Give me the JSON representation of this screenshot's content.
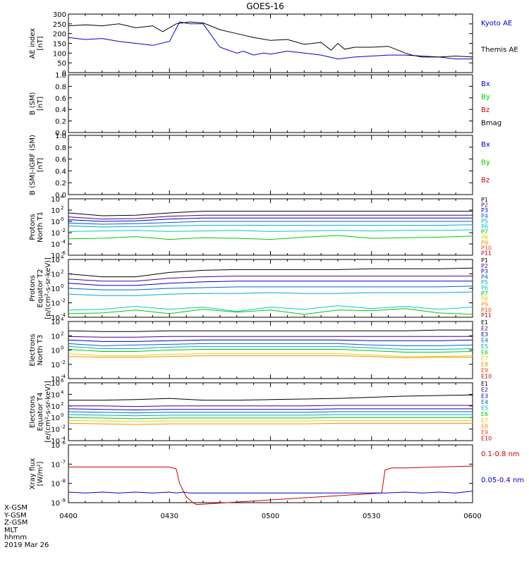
{
  "title": "GOES-16",
  "colors": {
    "black": "#000000",
    "blue": "#0000cc",
    "green": "#00cc00",
    "red": "#cc0000",
    "purple": "#6a0dad",
    "cyan": "#00cccc",
    "yellow": "#e6d300",
    "orange": "#ff8800"
  },
  "x_ticks": [
    "0400",
    "0430",
    "0500",
    "0530",
    "0600"
  ],
  "footer": [
    "X-GSM",
    "Y-GSM",
    "Z-GSM",
    "MLT",
    "hhmm",
    "2019 Mar 26"
  ],
  "chart_data": [
    {
      "type": "line",
      "panel": "ae",
      "ylabel": [
        "AE index",
        "[nT]"
      ],
      "ylim": [
        0,
        300
      ],
      "y_ticks": [
        "0",
        "50",
        "100",
        "150",
        "200",
        "250",
        "300"
      ],
      "x_range_min": [
        0,
        120
      ],
      "series": [
        {
          "name": "Kyoto AE",
          "color": "#0000cc",
          "x": [
            0,
            5,
            10,
            15,
            20,
            25,
            30,
            33,
            36,
            40,
            45,
            50,
            52,
            55,
            58,
            60,
            65,
            70,
            75,
            80,
            85,
            90,
            95,
            100,
            105,
            110,
            115,
            120
          ],
          "y": [
            180,
            170,
            175,
            160,
            150,
            140,
            160,
            260,
            250,
            250,
            130,
            100,
            110,
            90,
            100,
            95,
            110,
            100,
            90,
            70,
            80,
            85,
            90,
            90,
            85,
            80,
            70,
            70
          ]
        },
        {
          "name": "Themis AE",
          "color": "#000000",
          "x": [
            0,
            5,
            10,
            15,
            20,
            25,
            28,
            32,
            36,
            40,
            45,
            50,
            55,
            60,
            65,
            70,
            75,
            78,
            80,
            82,
            85,
            90,
            95,
            100,
            102,
            105,
            110,
            115,
            120
          ],
          "y": [
            240,
            245,
            240,
            250,
            230,
            240,
            210,
            250,
            260,
            255,
            220,
            200,
            180,
            165,
            170,
            145,
            155,
            115,
            150,
            120,
            130,
            130,
            135,
            100,
            90,
            80,
            80,
            85,
            80
          ]
        }
      ]
    },
    {
      "type": "line",
      "panel": "b_sm",
      "ylabel": [
        "B (SM)",
        "[nT]"
      ],
      "ylim": [
        0,
        1
      ],
      "y_ticks": [
        "0.0",
        "0.2",
        "0.4",
        "0.6",
        "0.8",
        "1.0"
      ],
      "series": [
        {
          "name": "Bx",
          "color": "#0000cc",
          "values": []
        },
        {
          "name": "By",
          "color": "#00cc00",
          "values": []
        },
        {
          "name": "Bz",
          "color": "#cc0000",
          "values": []
        },
        {
          "name": "Bmag",
          "color": "#000000",
          "values": []
        }
      ]
    },
    {
      "type": "line",
      "panel": "b_igrf",
      "ylabel": [
        "B (SM)-IGRF (SM)",
        "[nT]"
      ],
      "ylim": [
        0,
        1
      ],
      "y_ticks": [
        "0.0",
        "0.2",
        "0.4",
        "0.6",
        "0.8",
        "1.0"
      ],
      "series": [
        {
          "name": "Bx",
          "color": "#0000cc",
          "values": []
        },
        {
          "name": "By",
          "color": "#00cc00",
          "values": []
        },
        {
          "name": "Bz",
          "color": "#cc0000",
          "values": []
        }
      ]
    },
    {
      "type": "line",
      "panel": "protons_t1",
      "yscale": "log",
      "ylabel": [
        "Protons",
        "North T1"
      ],
      "ylim_exp": [
        -6,
        4
      ],
      "y_tick_exps": [
        -6,
        -4,
        -2,
        0,
        2,
        4
      ],
      "x": [
        0,
        10,
        20,
        30,
        40,
        50,
        60,
        70,
        80,
        90,
        100,
        110,
        120
      ],
      "series": [
        {
          "name": "P1",
          "color": "#000000",
          "log10": [
            1.5,
            1.0,
            1.1,
            1.5,
            1.8,
            1.8,
            1.8,
            1.8,
            1.8,
            1.8,
            1.8,
            1.8,
            1.8
          ]
        },
        {
          "name": "P2",
          "color": "#4b0082",
          "log10": [
            0.8,
            0.4,
            0.5,
            0.9,
            1.1,
            1.1,
            1.1,
            1.1,
            1.1,
            1.1,
            1.1,
            1.1,
            1.1
          ]
        },
        {
          "name": "P3",
          "color": "#0000cc",
          "log10": [
            0.3,
            0.0,
            0.1,
            0.4,
            0.6,
            0.6,
            0.6,
            0.6,
            0.6,
            0.6,
            0.6,
            0.6,
            0.6
          ]
        },
        {
          "name": "P4",
          "color": "#0066cc",
          "log10": [
            -0.3,
            -0.5,
            -0.4,
            -0.2,
            0.0,
            0.0,
            0.0,
            0.0,
            0.0,
            0.0,
            0.0,
            0.0,
            0.0
          ]
        },
        {
          "name": "P5",
          "color": "#00aacc",
          "log10": [
            -0.8,
            -1.0,
            -0.9,
            -0.8,
            -0.7,
            -0.7,
            -0.7,
            -0.7,
            -0.7,
            -0.7,
            -0.7,
            -0.7,
            -0.6
          ]
        },
        {
          "name": "P6",
          "color": "#00cccc",
          "log10": [
            -1.8,
            -1.7,
            -1.6,
            -1.8,
            -1.7,
            -1.6,
            -1.8,
            -1.7,
            -1.6,
            -1.7,
            -1.6,
            -1.6,
            -1.5
          ]
        },
        {
          "name": "P7",
          "color": "#00cc00",
          "log10": [
            -3.1,
            -3.0,
            -2.7,
            -3.2,
            -2.9,
            -3.0,
            -3.2,
            -2.8,
            -2.5,
            -3.0,
            -2.9,
            -2.8,
            -2.6
          ]
        }
      ]
    },
    {
      "type": "line",
      "panel": "protons_t2",
      "yscale": "log",
      "ylabel": [
        "Protons",
        "Equator T2",
        "[p/(cm²-s-sr-keV)]"
      ],
      "ylim_exp": [
        -4,
        4
      ],
      "y_tick_exps": [
        -4,
        -2,
        0,
        2,
        4
      ],
      "x": [
        0,
        10,
        20,
        30,
        40,
        50,
        60,
        70,
        80,
        90,
        100,
        110,
        120
      ],
      "series": [
        {
          "name": "P1",
          "color": "#000000",
          "log10": [
            2.0,
            1.6,
            1.6,
            2.2,
            2.5,
            2.6,
            2.6,
            2.6,
            2.6,
            2.7,
            2.7,
            2.7,
            2.8
          ]
        },
        {
          "name": "P2",
          "color": "#4b0082",
          "log10": [
            1.3,
            1.0,
            1.0,
            1.4,
            1.6,
            1.7,
            1.7,
            1.7,
            1.7,
            1.7,
            1.7,
            1.7,
            1.7
          ]
        },
        {
          "name": "P3",
          "color": "#0000cc",
          "log10": [
            0.7,
            0.4,
            0.4,
            0.7,
            0.9,
            1.0,
            1.0,
            1.0,
            1.0,
            1.0,
            1.0,
            1.0,
            1.0
          ]
        },
        {
          "name": "P4",
          "color": "#0066cc",
          "log10": [
            0.0,
            -0.2,
            -0.2,
            0.0,
            0.1,
            0.2,
            0.2,
            0.2,
            0.2,
            0.2,
            0.2,
            0.2,
            0.3
          ]
        },
        {
          "name": "P5",
          "color": "#00aacc",
          "log10": [
            -0.8,
            -1.0,
            -1.0,
            -0.8,
            -0.7,
            -0.7,
            -0.6,
            -0.7,
            -0.7,
            -0.6,
            -0.6,
            -0.6,
            -0.5
          ]
        },
        {
          "name": "P6",
          "color": "#00cccc",
          "log10": [
            -3.0,
            -2.9,
            -2.5,
            -2.9,
            -2.6,
            -3.2,
            -2.6,
            -2.9,
            -2.4,
            -2.8,
            -2.5,
            -2.9,
            -2.6
          ]
        },
        {
          "name": "P7",
          "color": "#00cc00",
          "log10": [
            -3.5,
            -3.4,
            -3.0,
            -3.5,
            -2.9,
            -3.3,
            -3.0,
            -3.6,
            -3.0,
            -3.1,
            -2.8,
            -3.4,
            -3.6
          ]
        }
      ]
    },
    {
      "type": "line",
      "panel": "electrons_t3",
      "yscale": "log",
      "ylabel": [
        "Electrons",
        "North T3"
      ],
      "ylim_exp": [
        -4,
        4
      ],
      "y_tick_exps": [
        -4,
        -2,
        0,
        2,
        4
      ],
      "x": [
        0,
        10,
        20,
        30,
        40,
        50,
        60,
        70,
        80,
        90,
        100,
        110,
        120
      ],
      "series": [
        {
          "name": "E1",
          "color": "#000000",
          "log10": [
            2.7,
            2.6,
            2.6,
            2.7,
            2.7,
            2.7,
            2.7,
            2.7,
            2.7,
            2.7,
            2.7,
            2.8,
            2.8
          ]
        },
        {
          "name": "E2",
          "color": "#4b0082",
          "log10": [
            1.9,
            1.8,
            1.8,
            1.9,
            1.9,
            1.9,
            1.9,
            1.9,
            1.9,
            1.9,
            1.9,
            1.9,
            1.9
          ]
        },
        {
          "name": "E3",
          "color": "#0000cc",
          "log10": [
            1.4,
            1.2,
            1.2,
            1.3,
            1.4,
            1.4,
            1.4,
            1.4,
            1.4,
            1.3,
            1.3,
            1.3,
            1.4
          ]
        },
        {
          "name": "E4",
          "color": "#0066cc",
          "log10": [
            0.9,
            0.6,
            0.7,
            0.8,
            0.9,
            0.9,
            0.9,
            0.9,
            0.9,
            0.7,
            0.6,
            0.6,
            0.7
          ]
        },
        {
          "name": "E5",
          "color": "#00aacc",
          "log10": [
            0.5,
            0.2,
            0.2,
            0.4,
            0.5,
            0.5,
            0.5,
            0.5,
            0.5,
            0.3,
            0.1,
            0.1,
            0.2
          ]
        },
        {
          "name": "E6",
          "color": "#00cc00",
          "log10": [
            0.1,
            -0.2,
            -0.2,
            0.0,
            0.1,
            0.1,
            0.1,
            0.1,
            0.1,
            -0.1,
            -0.3,
            -0.3,
            -0.2
          ]
        },
        {
          "name": "E7",
          "color": "#e6d300",
          "log10": [
            -0.5,
            -0.8,
            -0.8,
            -0.6,
            -0.5,
            -0.5,
            -0.5,
            -0.5,
            -0.5,
            -0.7,
            -0.9,
            -0.9,
            -0.8
          ]
        },
        {
          "name": "E8",
          "color": "#ff8800",
          "log10": [
            -0.9,
            -1.0,
            -1.0,
            -0.9,
            -0.8,
            -0.8,
            -0.8,
            -0.8,
            -0.8,
            -0.9,
            -1.1,
            -1.0,
            -1.0
          ]
        }
      ]
    },
    {
      "type": "line",
      "panel": "electrons_t4",
      "yscale": "log",
      "ylabel": [
        "Electrons",
        "Equator T4",
        "[e/(cm²-s-sr-keV)]"
      ],
      "ylim_exp": [
        -4,
        6
      ],
      "y_tick_exps": [
        -4,
        -2,
        0,
        2,
        4,
        6
      ],
      "x": [
        0,
        10,
        20,
        30,
        40,
        50,
        60,
        70,
        80,
        90,
        100,
        110,
        120
      ],
      "series": [
        {
          "name": "E1",
          "color": "#000000",
          "log10": [
            3.0,
            3.0,
            3.1,
            3.3,
            3.0,
            3.0,
            3.1,
            3.2,
            3.3,
            3.5,
            3.7,
            3.8,
            3.9
          ]
        },
        {
          "name": "E2",
          "color": "#4b0082",
          "log10": [
            2.0,
            2.0,
            1.9,
            2.0,
            2.0,
            2.0,
            2.0,
            2.0,
            2.1,
            2.1,
            2.1,
            2.1,
            2.1
          ]
        },
        {
          "name": "E3",
          "color": "#0000cc",
          "log10": [
            1.5,
            1.4,
            1.3,
            1.4,
            1.4,
            1.4,
            1.4,
            1.4,
            1.5,
            1.5,
            1.5,
            1.5,
            1.5
          ]
        },
        {
          "name": "E4",
          "color": "#0066cc",
          "log10": [
            1.0,
            0.9,
            0.8,
            0.9,
            0.9,
            0.9,
            0.9,
            0.9,
            1.0,
            1.0,
            1.0,
            1.0,
            1.0
          ]
        },
        {
          "name": "E5",
          "color": "#00aacc",
          "log10": [
            0.5,
            0.4,
            0.3,
            0.4,
            0.4,
            0.4,
            0.4,
            0.4,
            0.5,
            0.5,
            0.5,
            0.5,
            0.5
          ]
        },
        {
          "name": "E6",
          "color": "#00cc00",
          "log10": [
            0.0,
            -0.1,
            -0.2,
            -0.1,
            -0.1,
            -0.1,
            -0.1,
            -0.1,
            0.0,
            0.0,
            0.0,
            0.0,
            0.0
          ]
        },
        {
          "name": "E7",
          "color": "#e6d300",
          "log10": [
            -0.5,
            -0.6,
            -0.7,
            -0.6,
            -0.6,
            -0.6,
            -0.6,
            -0.6,
            -0.5,
            -0.5,
            -0.5,
            -0.5,
            -0.5
          ]
        },
        {
          "name": "E8",
          "color": "#ff8800",
          "log10": [
            -1.0,
            -1.1,
            -1.2,
            -1.1,
            -1.1,
            -1.1,
            -1.1,
            -1.1,
            -1.0,
            -1.0,
            -1.0,
            -1.0,
            -1.0
          ]
        }
      ]
    },
    {
      "type": "line",
      "panel": "xray",
      "yscale": "log",
      "ylabel": [
        "Xray flux",
        "[W/m²]"
      ],
      "ylim_exp": [
        -9,
        -6
      ],
      "y_tick_exps": [
        -9,
        -8,
        -7,
        -6
      ],
      "series": [
        {
          "name": "0.1-0.8 nm",
          "color": "#cc0000",
          "x": [
            0,
            10,
            20,
            30,
            32,
            33,
            35,
            37,
            38,
            93,
            94,
            96,
            100,
            110,
            120
          ],
          "log10": [
            -7.15,
            -7.15,
            -7.15,
            -7.15,
            -7.25,
            -8.0,
            -8.7,
            -9.0,
            -9.1,
            -8.5,
            -7.3,
            -7.2,
            -7.2,
            -7.15,
            -7.1
          ]
        },
        {
          "name": "0.05-0.4 nm",
          "color": "#0000cc",
          "x": [
            0,
            5,
            10,
            15,
            20,
            25,
            30,
            32,
            34,
            36,
            94,
            100,
            105,
            110,
            115,
            120
          ],
          "log10": [
            -8.45,
            -8.5,
            -8.45,
            -8.5,
            -8.45,
            -8.5,
            -8.45,
            -8.5,
            -8.45,
            -8.5,
            -8.5,
            -8.45,
            -8.5,
            -8.45,
            -8.5,
            -8.4
          ]
        }
      ]
    }
  ],
  "panel_labels": {
    "ae": [
      "Kyoto AE",
      "Themis AE"
    ],
    "b_sm": [
      "Bx",
      "By",
      "Bz",
      "Bmag"
    ],
    "b_igrf": [
      "Bx",
      "By",
      "Bz"
    ],
    "protons_t1": [
      "P1",
      "P2",
      "P3",
      "P4",
      "P5",
      "P6",
      "P7",
      "P8",
      "P9",
      "P10",
      "P11"
    ],
    "protons_t2": [
      "P1",
      "P2",
      "P3",
      "P4",
      "P5",
      "P6",
      "P7",
      "P8",
      "P9",
      "P10",
      "P11"
    ],
    "electrons_t3": [
      "E1",
      "E2",
      "E3",
      "E4",
      "E5",
      "E6",
      "E7",
      "E8",
      "E9",
      "E10"
    ],
    "electrons_t4": [
      "E1",
      "E2",
      "E3",
      "E4",
      "E5",
      "E6",
      "E7",
      "E8",
      "E9",
      "E10"
    ],
    "xray": [
      "0.1-0.8 nm",
      "0.05-0.4 nm"
    ]
  },
  "label_colors": {
    "ae": [
      "#0000cc",
      "#000000"
    ],
    "b_sm": [
      "#0000cc",
      "#00cc00",
      "#cc0000",
      "#000000"
    ],
    "b_igrf": [
      "#0000cc",
      "#00cc00",
      "#cc0000"
    ],
    "protons_t1": [
      "#000000",
      "#4b0082",
      "#0000cc",
      "#0066cc",
      "#00aacc",
      "#00cccc",
      "#00cc00",
      "#e6d300",
      "#ff8800",
      "#ff4400",
      "#cc0000"
    ],
    "protons_t2": [
      "#000000",
      "#4b0082",
      "#0000cc",
      "#0066cc",
      "#00aacc",
      "#00cccc",
      "#00cc00",
      "#e6d300",
      "#ff8800",
      "#ff4400",
      "#cc0000"
    ],
    "electrons_t3": [
      "#000000",
      "#4b0082",
      "#0000cc",
      "#0066cc",
      "#00aacc",
      "#00cc00",
      "#e6d300",
      "#ff8800",
      "#ff4400",
      "#cc0000"
    ],
    "electrons_t4": [
      "#000000",
      "#4b0082",
      "#0000cc",
      "#0066cc",
      "#00aacc",
      "#00cc00",
      "#e6d300",
      "#ff8800",
      "#ff4400",
      "#cc0000"
    ],
    "xray": [
      "#cc0000",
      "#0000cc"
    ]
  }
}
